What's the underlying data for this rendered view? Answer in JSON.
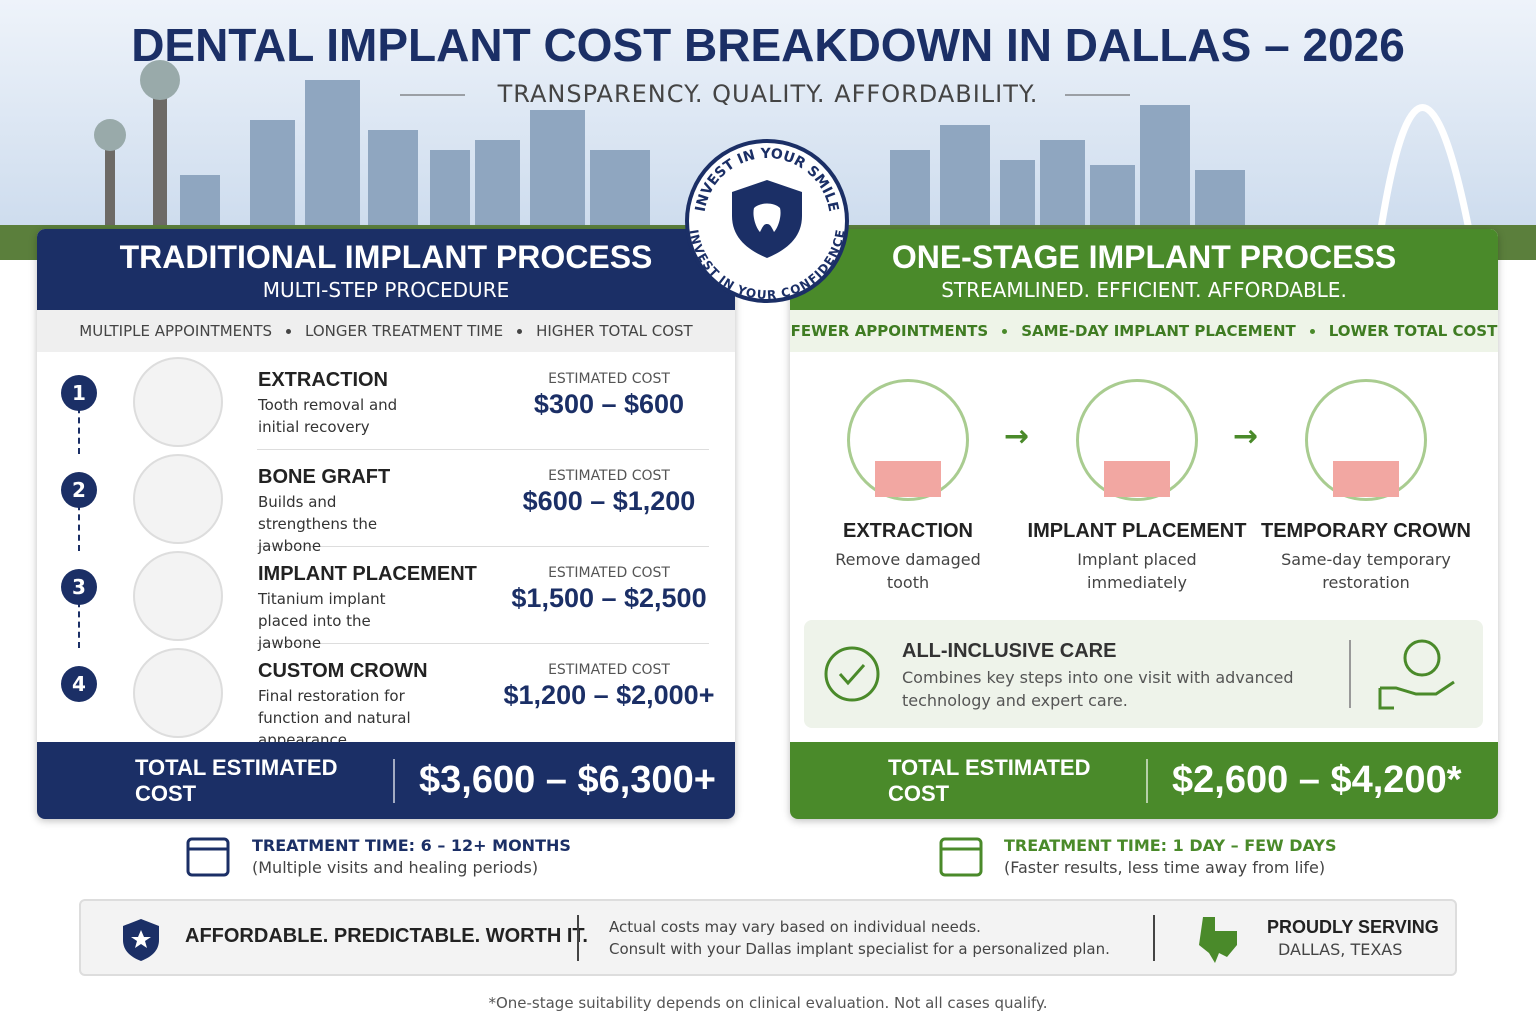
{
  "header": {
    "title": "DENTAL IMPLANT COST BREAKDOWN IN DALLAS – 2026",
    "subtitle": "TRANSPARENCY. QUALITY. AFFORDABILITY."
  },
  "badge": {
    "top": "INVEST IN YOUR SMILE",
    "bottom": "INVEST IN YOUR CONFIDENCE"
  },
  "traditional": {
    "title": "TRADITIONAL IMPLANT PROCESS",
    "subtitle": "MULTI-STEP PROCEDURE",
    "features": [
      "MULTIPLE APPOINTMENTS",
      "LONGER TREATMENT TIME",
      "HIGHER TOTAL COST"
    ],
    "steps": [
      {
        "number": "1",
        "name": "EXTRACTION",
        "description": "Tooth removal and initial recovery",
        "cost_label": "ESTIMATED COST",
        "cost": "$300 – $600"
      },
      {
        "number": "2",
        "name": "BONE GRAFT",
        "description": "Builds and strengthens the jawbone",
        "cost_label": "ESTIMATED COST",
        "cost": "$600 – $1,200"
      },
      {
        "number": "3",
        "name": "IMPLANT PLACEMENT",
        "description": "Titanium implant placed into the jawbone",
        "cost_label": "ESTIMATED COST",
        "cost": "$1,500 – $2,500"
      },
      {
        "number": "4",
        "name": "CUSTOM CROWN",
        "description": "Final restoration for function and natural appearance",
        "cost_label": "ESTIMATED COST",
        "cost": "$1,200 – $2,000+"
      }
    ],
    "total_label": "TOTAL ESTIMATED COST",
    "total": "$3,600 – $6,300+",
    "time_title": "TREATMENT TIME: 6 – 12+ MONTHS",
    "time_note": "(Multiple visits and healing periods)"
  },
  "one_stage": {
    "title": "ONE-STAGE IMPLANT PROCESS",
    "subtitle": "STREAMLINED. EFFICIENT. AFFORDABLE.",
    "features": [
      "FEWER APPOINTMENTS",
      "SAME-DAY IMPLANT PLACEMENT",
      "LOWER TOTAL COST"
    ],
    "steps": [
      {
        "name": "EXTRACTION",
        "description": "Remove damaged tooth"
      },
      {
        "name": "IMPLANT PLACEMENT",
        "description": "Implant placed immediately"
      },
      {
        "name": "TEMPORARY CROWN",
        "description": "Same-day temporary restoration"
      }
    ],
    "care_title": "ALL-INCLUSIVE CARE",
    "care_text": "Combines key steps into one visit with advanced technology and expert care.",
    "total_label": "TOTAL ESTIMATED COST",
    "total": "$2,600 – $4,200*",
    "time_title": "TREATMENT TIME: 1 DAY – FEW DAYS",
    "time_note": "(Faster results, less time away from life)"
  },
  "footer": {
    "slogan": "AFFORDABLE. PREDICTABLE. WORTH IT.",
    "note_lines": [
      "Actual costs may vary based on individual needs.",
      "Consult with your Dallas implant specialist for a personalized plan."
    ],
    "serving": [
      "PROUDLY SERVING",
      "DALLAS, TEXAS"
    ]
  },
  "disclaimer": "*One-stage suitability depends on clinical evaluation. Not all cases qualify."
}
